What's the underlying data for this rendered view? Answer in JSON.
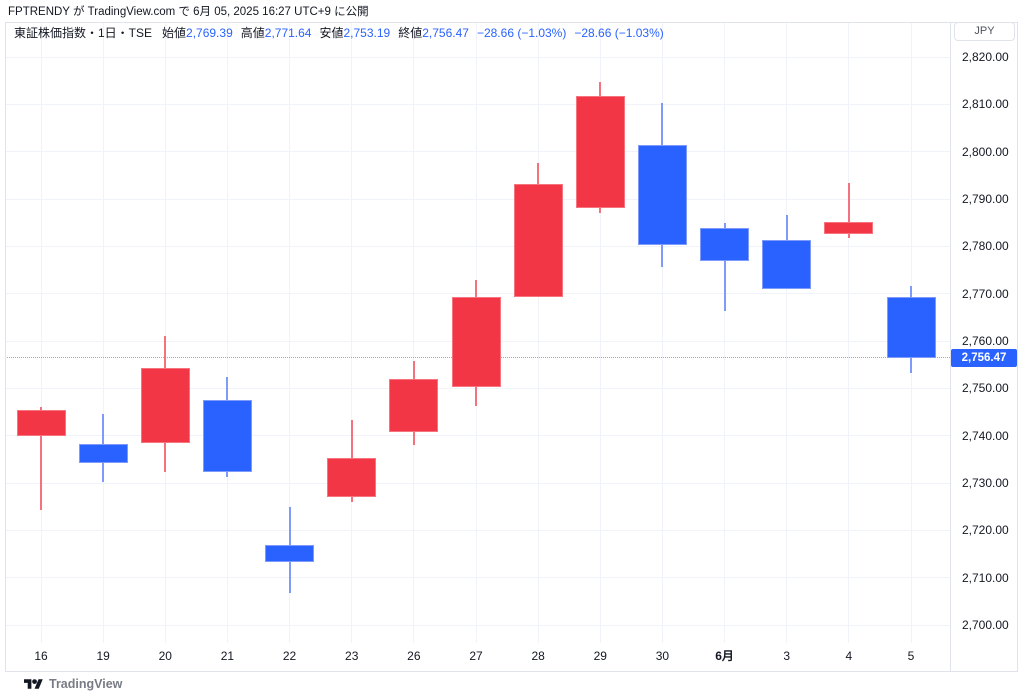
{
  "attribution": "FPTRENDY が TradingView.com で 6月 05, 2025 16:27 UTC+9 に公開",
  "legend": {
    "symbol_title": "東証株価指数・1日・TSE",
    "ohlc": [
      {
        "label": "始値",
        "value": "2,769.39"
      },
      {
        "label": "高値",
        "value": "2,771.64"
      },
      {
        "label": "安値",
        "value": "2,753.19"
      },
      {
        "label": "終値",
        "value": "2,756.47"
      }
    ],
    "changes": [
      "−28.66 (−1.03%)",
      "−28.66 (−1.03%)"
    ]
  },
  "price_scale": {
    "currency_label": "JPY",
    "tick_labels": [
      "2,820.00",
      "2,810.00",
      "2,800.00",
      "2,790.00",
      "2,780.00",
      "2,770.00",
      "2,760.00",
      "2,750.00",
      "2,740.00",
      "2,730.00",
      "2,720.00",
      "2,710.00",
      "2,700.00"
    ],
    "last_price_label": "2,756.47"
  },
  "time_scale": {
    "labels": [
      {
        "text": "16",
        "bold": false
      },
      {
        "text": "19",
        "bold": false
      },
      {
        "text": "20",
        "bold": false
      },
      {
        "text": "21",
        "bold": false
      },
      {
        "text": "22",
        "bold": false
      },
      {
        "text": "23",
        "bold": false
      },
      {
        "text": "26",
        "bold": false
      },
      {
        "text": "27",
        "bold": false
      },
      {
        "text": "28",
        "bold": false
      },
      {
        "text": "29",
        "bold": false
      },
      {
        "text": "30",
        "bold": false
      },
      {
        "text": "6月",
        "bold": true
      },
      {
        "text": "3",
        "bold": false
      },
      {
        "text": "4",
        "bold": false
      },
      {
        "text": "5",
        "bold": false
      }
    ]
  },
  "footer": {
    "logo_text": "TradingView"
  },
  "colors": {
    "up": "#F23645",
    "down": "#2962FF",
    "value_text": "#2962FF",
    "grid": "#f0f3fa",
    "axis_text": "#131722",
    "last_price_badge": "#2962FF"
  },
  "chart_data": {
    "type": "candlestick",
    "title": "東証株価指数・1日・TSE",
    "currency": "JPY",
    "ylim": [
      2700,
      2820
    ],
    "y_ticks": [
      2820,
      2810,
      2800,
      2790,
      2780,
      2770,
      2760,
      2750,
      2740,
      2730,
      2720,
      2710,
      2700
    ],
    "grid": true,
    "last_price": 2756.47,
    "change": -28.66,
    "change_pct": -1.03,
    "x_labels": [
      "16",
      "19",
      "20",
      "21",
      "22",
      "23",
      "26",
      "27",
      "28",
      "29",
      "30",
      "6月",
      "3",
      "4",
      "5"
    ],
    "series": [
      {
        "x": "16",
        "open": 2740.0,
        "high": 2746.1,
        "low": 2724.3,
        "close": 2745.4,
        "dir": "up"
      },
      {
        "x": "19",
        "open": 2738.2,
        "high": 2744.6,
        "low": 2730.3,
        "close": 2734.2,
        "dir": "down"
      },
      {
        "x": "20",
        "open": 2738.4,
        "high": 2761.1,
        "low": 2732.3,
        "close": 2754.3,
        "dir": "up"
      },
      {
        "x": "21",
        "open": 2747.5,
        "high": 2752.4,
        "low": 2731.3,
        "close": 2732.3,
        "dir": "down"
      },
      {
        "x": "22",
        "open": 2716.9,
        "high": 2725.0,
        "low": 2706.7,
        "close": 2713.4,
        "dir": "down"
      },
      {
        "x": "23",
        "open": 2727.0,
        "high": 2743.3,
        "low": 2726.0,
        "close": 2735.3,
        "dir": "up"
      },
      {
        "x": "26",
        "open": 2740.7,
        "high": 2755.8,
        "low": 2738.0,
        "close": 2751.9,
        "dir": "up"
      },
      {
        "x": "27",
        "open": 2750.2,
        "high": 2772.8,
        "low": 2746.2,
        "close": 2769.4,
        "dir": "up"
      },
      {
        "x": "28",
        "open": 2769.2,
        "high": 2797.6,
        "low": 2769.2,
        "close": 2793.2,
        "dir": "up"
      },
      {
        "x": "29",
        "open": 2788.1,
        "high": 2814.7,
        "low": 2787.0,
        "close": 2811.8,
        "dir": "up"
      },
      {
        "x": "30",
        "open": 2801.4,
        "high": 2810.2,
        "low": 2775.6,
        "close": 2780.3,
        "dir": "down"
      },
      {
        "x": "6月",
        "open": 2783.8,
        "high": 2785.0,
        "low": 2766.4,
        "close": 2777.0,
        "dir": "down"
      },
      {
        "x": "3",
        "open": 2781.3,
        "high": 2786.6,
        "low": 2771.0,
        "close": 2771.0,
        "dir": "down"
      },
      {
        "x": "4",
        "open": 2782.6,
        "high": 2793.4,
        "low": 2781.8,
        "close": 2785.13,
        "dir": "up"
      },
      {
        "x": "5",
        "open": 2769.39,
        "high": 2771.64,
        "low": 2753.19,
        "close": 2756.47,
        "dir": "down"
      }
    ]
  }
}
